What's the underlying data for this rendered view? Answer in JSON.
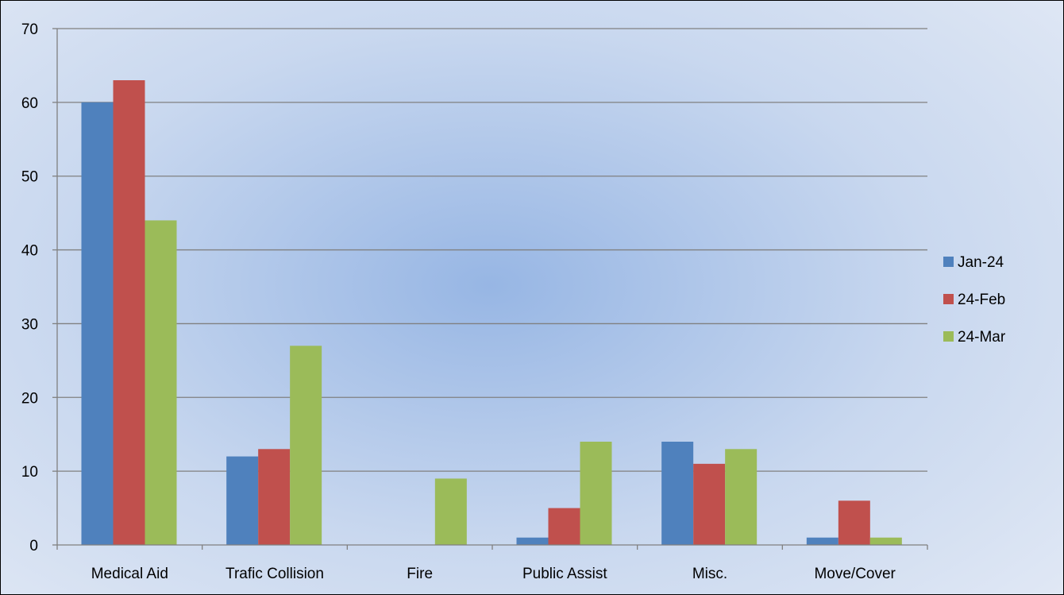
{
  "chart_data": {
    "type": "bar",
    "categories": [
      "Medical Aid",
      "Trafic Collision",
      "Fire",
      "Public Assist",
      "Misc.",
      "Move/Cover"
    ],
    "series": [
      {
        "name": "Jan-24",
        "values": [
          60,
          12,
          0,
          1,
          14,
          1
        ]
      },
      {
        "name": "24-Feb",
        "values": [
          63,
          13,
          0,
          5,
          11,
          6
        ]
      },
      {
        "name": "24-Mar",
        "values": [
          44,
          27,
          9,
          14,
          13,
          1
        ]
      }
    ],
    "ylim": [
      0,
      70
    ],
    "yticks": [
      0,
      10,
      20,
      30,
      40,
      50,
      60,
      70
    ],
    "grid": true,
    "legend_position": "right",
    "title": "",
    "xlabel": "",
    "ylabel": ""
  },
  "colors": {
    "series": [
      "#4f81bd",
      "#c0504d",
      "#9bbb59"
    ],
    "gridline": "#808080",
    "axis": "#808080"
  }
}
